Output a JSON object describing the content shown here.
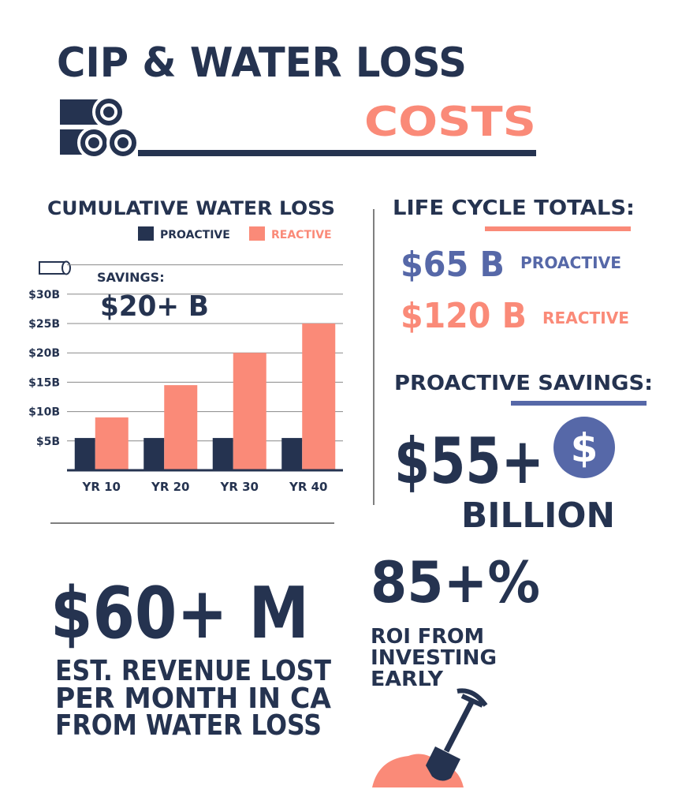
{
  "header": {
    "title": "CIP & WATER LOSS",
    "subtitle": "COSTS"
  },
  "chart_data": {
    "type": "bar",
    "title": "CUMULATIVE WATER LOSS",
    "categories": [
      "YR 10",
      "YR 20",
      "YR 30",
      "YR 40"
    ],
    "series": [
      {
        "name": "PROACTIVE",
        "color": "#253350",
        "values": [
          5.5,
          5.5,
          5.5,
          5.5
        ]
      },
      {
        "name": "REACTIVE",
        "color": "#fa8a78",
        "values": [
          9,
          14.5,
          20,
          25
        ]
      }
    ],
    "ylim": [
      0,
      35
    ],
    "yticks": [
      {
        "value": 5,
        "label": "$5B"
      },
      {
        "value": 10,
        "label": "$10B"
      },
      {
        "value": 15,
        "label": "$15B"
      },
      {
        "value": 20,
        "label": "$20B"
      },
      {
        "value": 25,
        "label": "$25B"
      },
      {
        "value": 30,
        "label": "$30B"
      }
    ],
    "grid": true,
    "annotation": {
      "label": "SAVINGS:",
      "value": "$20+ B"
    }
  },
  "life_cycle": {
    "title": "LIFE CYCLE TOTALS:",
    "proactive_amount": "$65 B",
    "proactive_label": "PROACTIVE",
    "reactive_amount": "$120 B",
    "reactive_label": "REACTIVE"
  },
  "savings": {
    "title": "PROACTIVE SAVINGS:",
    "amount": "$55+",
    "icon": "$",
    "unit": "BILLION"
  },
  "revenue": {
    "amount": "$60+ M",
    "lines": [
      "EST. REVENUE LOST",
      "PER MONTH IN CA",
      "FROM WATER LOSS"
    ]
  },
  "roi": {
    "amount": "85+%",
    "lines": [
      "ROI FROM",
      "INVESTING",
      "EARLY"
    ]
  }
}
